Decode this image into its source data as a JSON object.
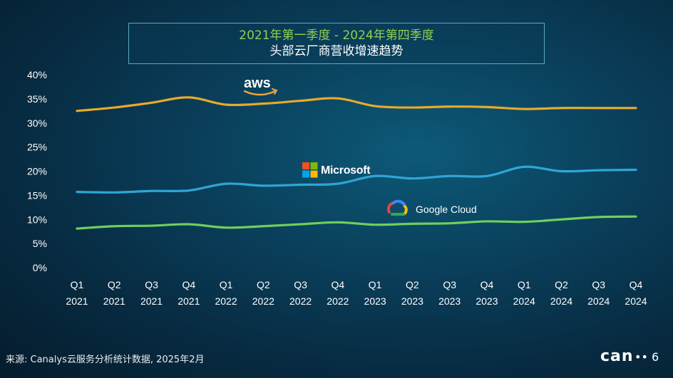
{
  "header": {
    "title_line1": "2021年第一季度 -  2024年第四季度",
    "title_line2": "头部云厂商营收增速趋势"
  },
  "footer": {
    "source": "来源: Canalys云服务分析统计数据, 2025年2月",
    "logo_text": "can",
    "logo_tail": "••  6"
  },
  "chart_data": {
    "type": "line",
    "categories": [
      [
        "Q1",
        "2021"
      ],
      [
        "Q2",
        "2021"
      ],
      [
        "Q3",
        "2021"
      ],
      [
        "Q4",
        "2021"
      ],
      [
        "Q1",
        "2022"
      ],
      [
        "Q2",
        "2022"
      ],
      [
        "Q3",
        "2022"
      ],
      [
        "Q4",
        "2022"
      ],
      [
        "Q1",
        "2023"
      ],
      [
        "Q2",
        "2023"
      ],
      [
        "Q3",
        "2023"
      ],
      [
        "Q4",
        "2023"
      ],
      [
        "Q1",
        "2024"
      ],
      [
        "Q2",
        "2024"
      ],
      [
        "Q3",
        "2024"
      ],
      [
        "Q4",
        "2024"
      ]
    ],
    "y_ticks": [
      "0%",
      "5%",
      "10%",
      "15%",
      "20%",
      "25%",
      "30%",
      "35%",
      "40%"
    ],
    "ylim": [
      0,
      40
    ],
    "grid": false,
    "series": [
      {
        "name": "aws",
        "color": "#e8a92b",
        "label_color": "#ffffff",
        "smile_color": "#f0a23a",
        "values": [
          32.5,
          33.2,
          34.2,
          35.3,
          33.8,
          34.0,
          34.6,
          35.1,
          33.5,
          33.2,
          33.4,
          33.3,
          32.9,
          33.1,
          33.1,
          33.1
        ]
      },
      {
        "name": "Microsoft",
        "color": "#2ea6d6",
        "label_color": "#ffffff",
        "logo_colors": [
          "#f25022",
          "#7fba00",
          "#00a4ef",
          "#ffb900"
        ],
        "values": [
          15.7,
          15.6,
          15.9,
          16.0,
          17.4,
          17.0,
          17.2,
          17.4,
          19.0,
          18.5,
          19.0,
          19.0,
          20.9,
          20.0,
          20.2,
          20.3
        ]
      },
      {
        "name": "Google Cloud",
        "color": "#6fcf5c",
        "label_color": "#ffffff",
        "logo_colors": [
          "#ea4335",
          "#4285f4",
          "#34a853",
          "#fbbc05"
        ],
        "values": [
          8.1,
          8.6,
          8.7,
          9.0,
          8.3,
          8.6,
          9.0,
          9.4,
          8.9,
          9.1,
          9.2,
          9.6,
          9.5,
          10.0,
          10.5,
          10.6
        ]
      }
    ]
  }
}
